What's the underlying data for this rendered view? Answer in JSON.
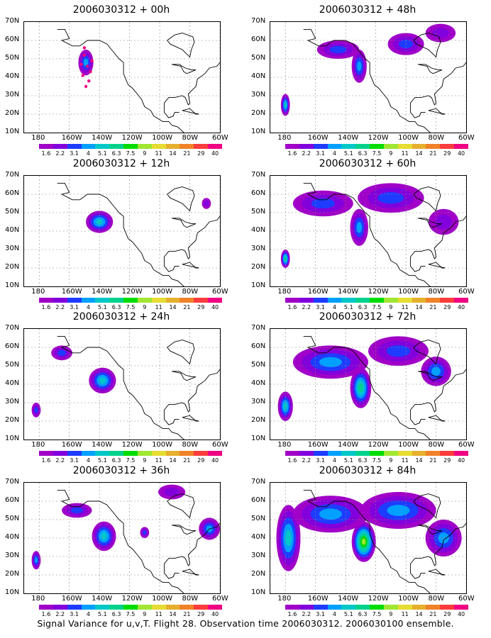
{
  "colorbar": {
    "levels": [
      "1.6",
      "2.2",
      "3.1",
      "4",
      "5.1",
      "6.3",
      "7.5",
      "9",
      "11",
      "14",
      "21",
      "29",
      "40"
    ],
    "colors": [
      "#a000c8",
      "#8200dc",
      "#1e3cff",
      "#00a0ff",
      "#00c8c8",
      "#00d28c",
      "#00dc00",
      "#a0e632",
      "#e6dc32",
      "#e6af2d",
      "#f08228",
      "#fa3c3c",
      "#f00082"
    ]
  },
  "axes": {
    "lat_labels": [
      "70N",
      "60N",
      "50N",
      "40N",
      "30N",
      "20N",
      "10N"
    ],
    "lon_labels": [
      "180",
      "160W",
      "140W",
      "120W",
      "100W",
      "80W",
      "60W"
    ]
  },
  "panels": [
    {
      "title": "2006030312 + 00h",
      "blobs": [
        {
          "cx": -149,
          "cy": 48,
          "rx": 5,
          "ry": 7,
          "lv": 3
        }
      ],
      "dots": true
    },
    {
      "title": "2006030312 + 48h",
      "blobs": [
        {
          "cx": -180,
          "cy": 25,
          "rx": 3,
          "ry": 6,
          "lv": 4
        },
        {
          "cx": -131,
          "cy": 46,
          "rx": 5,
          "ry": 9,
          "lv": 3
        },
        {
          "cx": -145,
          "cy": 55,
          "rx": 14,
          "ry": 5,
          "lv": 2
        },
        {
          "cx": -100,
          "cy": 58,
          "rx": 12,
          "ry": 6,
          "lv": 2
        },
        {
          "cx": -77,
          "cy": 64,
          "rx": 10,
          "ry": 5,
          "lv": 1
        }
      ]
    },
    {
      "title": "2006030312 + 12h",
      "blobs": [
        {
          "cx": -140,
          "cy": 45,
          "rx": 9,
          "ry": 6,
          "lv": 4
        },
        {
          "cx": -69,
          "cy": 55,
          "rx": 3,
          "ry": 3,
          "lv": 1
        }
      ]
    },
    {
      "title": "2006030312 + 60h",
      "blobs": [
        {
          "cx": -180,
          "cy": 25,
          "rx": 3,
          "ry": 5,
          "lv": 5
        },
        {
          "cx": -131,
          "cy": 42,
          "rx": 6,
          "ry": 10,
          "lv": 3
        },
        {
          "cx": -155,
          "cy": 55,
          "rx": 20,
          "ry": 7,
          "lv": 2
        },
        {
          "cx": -110,
          "cy": 58,
          "rx": 22,
          "ry": 8,
          "lv": 2
        },
        {
          "cx": -75,
          "cy": 45,
          "rx": 10,
          "ry": 7,
          "lv": 1
        }
      ]
    },
    {
      "title": "2006030312 + 24h",
      "blobs": [
        {
          "cx": -138,
          "cy": 42,
          "rx": 9,
          "ry": 7,
          "lv": 4
        },
        {
          "cx": -165,
          "cy": 57,
          "rx": 7,
          "ry": 4,
          "lv": 2
        },
        {
          "cx": -182,
          "cy": 26,
          "rx": 3,
          "ry": 4,
          "lv": 2
        }
      ]
    },
    {
      "title": "2006030312 + 72h",
      "blobs": [
        {
          "cx": -180,
          "cy": 28,
          "rx": 5,
          "ry": 8,
          "lv": 4
        },
        {
          "cx": -130,
          "cy": 38,
          "rx": 7,
          "ry": 11,
          "lv": 5
        },
        {
          "cx": -150,
          "cy": 52,
          "rx": 25,
          "ry": 9,
          "lv": 3
        },
        {
          "cx": -105,
          "cy": 58,
          "rx": 20,
          "ry": 8,
          "lv": 2
        },
        {
          "cx": -80,
          "cy": 47,
          "rx": 10,
          "ry": 8,
          "lv": 3
        }
      ]
    },
    {
      "title": "2006030312 + 36h",
      "blobs": [
        {
          "cx": -137,
          "cy": 41,
          "rx": 8,
          "ry": 8,
          "lv": 4
        },
        {
          "cx": -182,
          "cy": 28,
          "rx": 3,
          "ry": 5,
          "lv": 3
        },
        {
          "cx": -155,
          "cy": 55,
          "rx": 10,
          "ry": 4,
          "lv": 2
        },
        {
          "cx": -110,
          "cy": 43,
          "rx": 3,
          "ry": 3,
          "lv": 2
        },
        {
          "cx": -67,
          "cy": 45,
          "rx": 7,
          "ry": 6,
          "lv": 3
        },
        {
          "cx": -92,
          "cy": 65,
          "rx": 9,
          "ry": 4,
          "lv": 1
        }
      ]
    },
    {
      "title": "2006030312 + 84h",
      "blobs": [
        {
          "cx": -128,
          "cy": 38,
          "rx": 8,
          "ry": 11,
          "lv": 7
        },
        {
          "cx": -178,
          "cy": 40,
          "rx": 8,
          "ry": 18,
          "lv": 4
        },
        {
          "cx": -150,
          "cy": 53,
          "rx": 25,
          "ry": 10,
          "lv": 3
        },
        {
          "cx": -105,
          "cy": 55,
          "rx": 25,
          "ry": 10,
          "lv": 3
        },
        {
          "cx": -75,
          "cy": 40,
          "rx": 12,
          "ry": 10,
          "lv": 3
        }
      ]
    }
  ],
  "footer": "Signal Variance for u,v,T. Flight 28. Observation time 2006030312. 2006030100 ensemble."
}
